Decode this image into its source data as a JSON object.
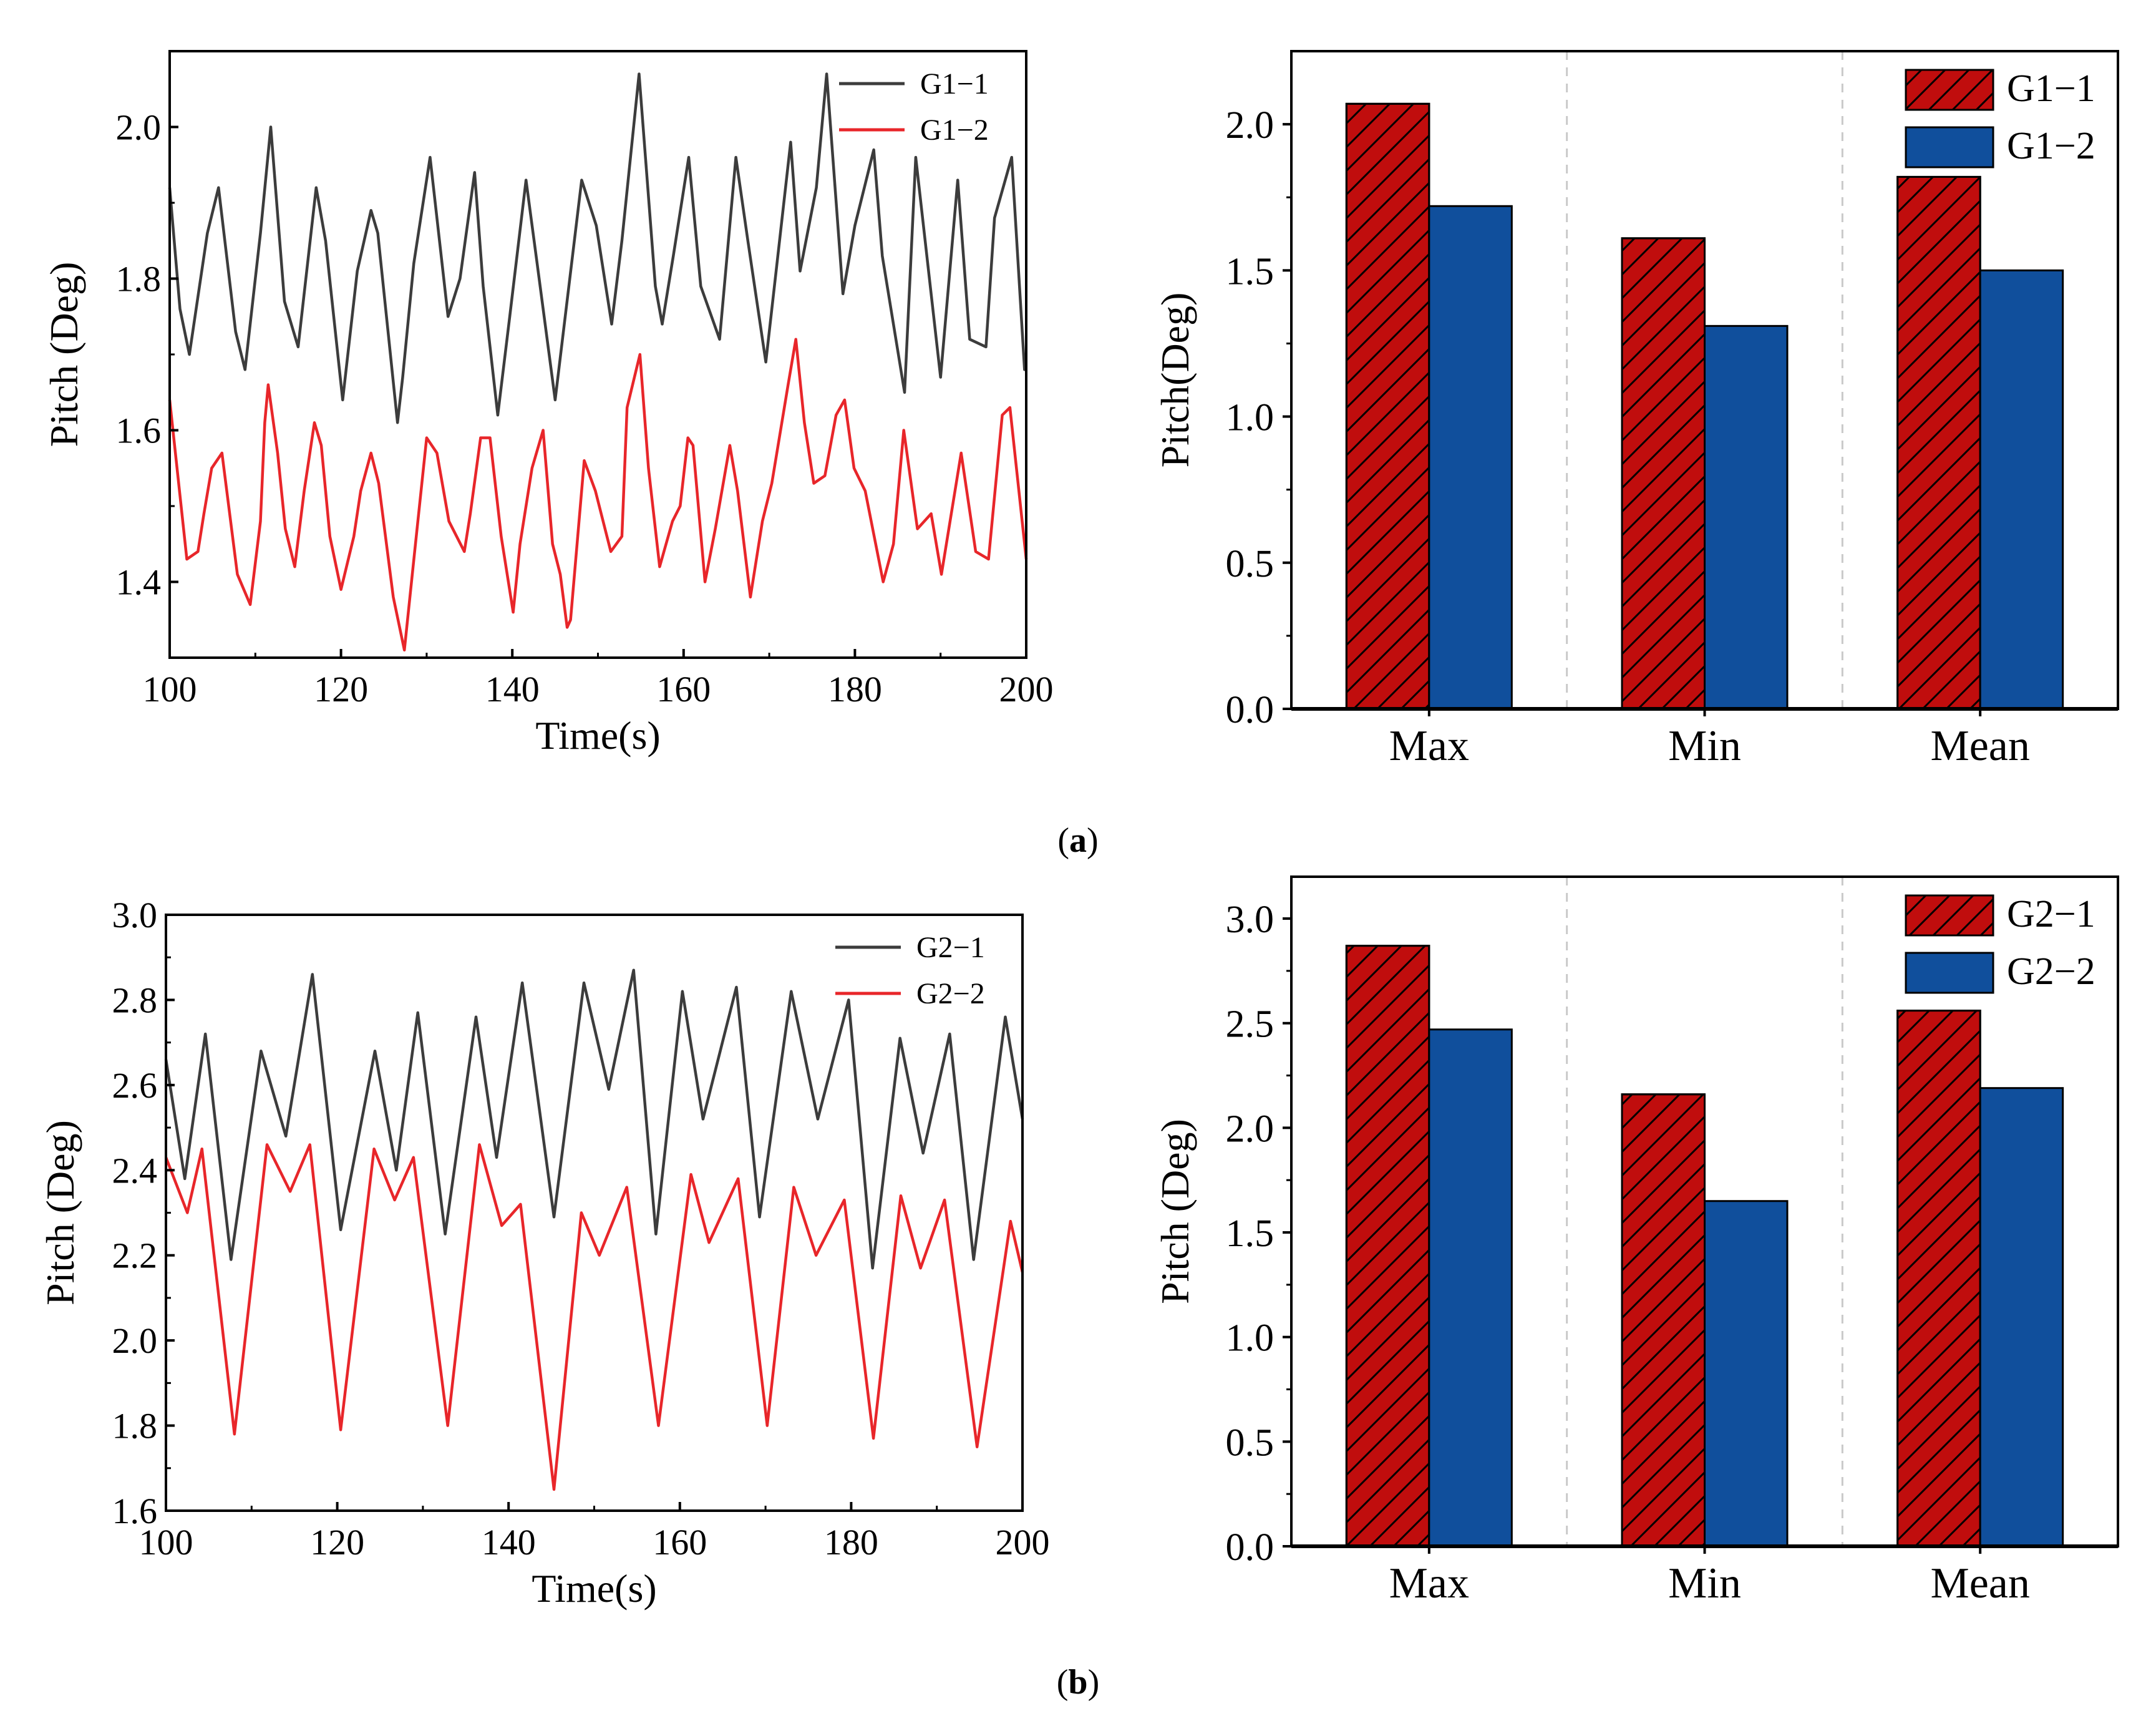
{
  "figure": {
    "panel_labels": [
      "a",
      "b"
    ],
    "colors": {
      "g1": "#3c3c3c",
      "g2": "#e8262a",
      "bar1": "#c00d0d",
      "bar2": "#104f9c",
      "separator": "#c9c9c9"
    }
  },
  "chart_data": [
    {
      "id": "a-left",
      "type": "line",
      "title": "",
      "xlabel": "Time(s)",
      "ylabel": "Pitch (Deg)",
      "xlim": [
        100,
        200
      ],
      "ylim": [
        1.3,
        2.1
      ],
      "xticks": [
        100,
        120,
        140,
        160,
        180,
        200
      ],
      "yticks": [
        1.4,
        1.6,
        1.8,
        2.0
      ],
      "ytick_labels": [
        "1.4",
        "1.6",
        "1.8",
        "2.0"
      ],
      "legend": "top-right",
      "series": [
        {
          "name": "G1−1",
          "color": "#3c3c3c",
          "x": [
            100.0,
            101.2,
            102.3,
            104.4,
            105.7,
            107.7,
            108.8,
            110.6,
            111.8,
            113.4,
            115.0,
            117.1,
            118.2,
            120.2,
            121.9,
            123.5,
            124.3,
            126.6,
            127.2,
            128.5,
            130.4,
            132.5,
            133.9,
            135.6,
            136.6,
            138.3,
            139.7,
            141.6,
            142.9,
            145.0,
            148.1,
            149.8,
            151.6,
            152.8,
            154.8,
            156.7,
            157.5,
            158.8,
            160.6,
            162.0,
            164.2,
            166.1,
            167.5,
            169.6,
            171.2,
            172.5,
            173.6,
            175.5,
            176.7,
            178.6,
            180.0,
            182.2,
            183.2,
            185.8,
            187.1,
            188.8,
            190.0,
            192.0,
            193.4,
            195.3,
            196.3,
            198.3,
            199.8,
            200.0
          ],
          "y": [
            1.92,
            1.76,
            1.7,
            1.86,
            1.92,
            1.73,
            1.68,
            1.86,
            2.0,
            1.77,
            1.71,
            1.92,
            1.85,
            1.64,
            1.81,
            1.89,
            1.86,
            1.61,
            1.67,
            1.82,
            1.96,
            1.75,
            1.8,
            1.94,
            1.79,
            1.62,
            1.75,
            1.93,
            1.82,
            1.64,
            1.93,
            1.87,
            1.74,
            1.85,
            2.07,
            1.79,
            1.74,
            1.83,
            1.96,
            1.79,
            1.72,
            1.96,
            1.85,
            1.69,
            1.85,
            1.98,
            1.81,
            1.92,
            2.07,
            1.78,
            1.87,
            1.97,
            1.83,
            1.65,
            1.96,
            1.79,
            1.67,
            1.93,
            1.72,
            1.71,
            1.88,
            1.96,
            1.68,
            1.68
          ]
        },
        {
          "name": "G1−2",
          "color": "#e8262a",
          "x": [
            100.0,
            102.0,
            103.3,
            104.0,
            104.9,
            106.1,
            107.9,
            109.4,
            110.6,
            111.1,
            111.5,
            112.6,
            113.5,
            114.6,
            115.7,
            116.9,
            117.7,
            118.7,
            120.0,
            121.5,
            122.3,
            123.5,
            124.4,
            126.1,
            127.4,
            128.6,
            130.0,
            131.2,
            132.6,
            134.4,
            135.1,
            136.3,
            137.4,
            138.7,
            140.1,
            140.9,
            142.3,
            143.6,
            144.7,
            145.6,
            146.4,
            146.8,
            148.4,
            149.7,
            151.5,
            152.8,
            153.4,
            154.9,
            155.9,
            157.2,
            158.7,
            159.6,
            160.5,
            161.1,
            162.5,
            163.7,
            165.4,
            166.3,
            167.8,
            169.2,
            170.3,
            172.2,
            173.1,
            174.1,
            175.2,
            176.5,
            177.8,
            178.8,
            179.9,
            181.2,
            183.3,
            184.5,
            185.7,
            187.3,
            188.9,
            190.1,
            192.4,
            194.1,
            195.6,
            197.2,
            198.1,
            200.0
          ],
          "y": [
            1.64,
            1.43,
            1.44,
            1.49,
            1.55,
            1.57,
            1.41,
            1.37,
            1.48,
            1.61,
            1.66,
            1.57,
            1.47,
            1.42,
            1.52,
            1.61,
            1.58,
            1.46,
            1.39,
            1.46,
            1.52,
            1.57,
            1.53,
            1.38,
            1.31,
            1.44,
            1.59,
            1.57,
            1.48,
            1.44,
            1.49,
            1.59,
            1.59,
            1.46,
            1.36,
            1.45,
            1.55,
            1.6,
            1.45,
            1.41,
            1.34,
            1.35,
            1.56,
            1.52,
            1.44,
            1.46,
            1.63,
            1.7,
            1.55,
            1.42,
            1.48,
            1.5,
            1.59,
            1.58,
            1.4,
            1.47,
            1.58,
            1.52,
            1.38,
            1.48,
            1.53,
            1.66,
            1.72,
            1.61,
            1.53,
            1.54,
            1.62,
            1.64,
            1.55,
            1.52,
            1.4,
            1.45,
            1.6,
            1.47,
            1.49,
            1.41,
            1.57,
            1.44,
            1.43,
            1.62,
            1.63,
            1.43
          ]
        }
      ]
    },
    {
      "id": "a-right",
      "type": "bar",
      "title": "",
      "xlabel": "",
      "ylabel": "Pitch(Deg)",
      "categories": [
        "Max",
        "Min",
        "Mean"
      ],
      "ylim": [
        0,
        2.25
      ],
      "yticks": [
        0.0,
        0.5,
        1.0,
        1.5,
        2.0
      ],
      "ytick_labels": [
        "0.0",
        "0.5",
        "1.0",
        "1.5",
        "2.0"
      ],
      "legend": "top-right",
      "series": [
        {
          "name": "G1−1",
          "values": [
            2.07,
            1.61,
            1.82
          ],
          "color": "#c00d0d",
          "hatch": true
        },
        {
          "name": "G1−2",
          "values": [
            1.72,
            1.31,
            1.5
          ],
          "color": "#104f9c",
          "hatch": false
        }
      ]
    },
    {
      "id": "b-left",
      "type": "line",
      "title": "",
      "xlabel": "Time(s)",
      "ylabel": "Pitch (Deg)",
      "xlim": [
        100,
        200
      ],
      "ylim": [
        1.6,
        3.0
      ],
      "xticks": [
        100,
        120,
        140,
        160,
        180,
        200
      ],
      "yticks": [
        1.6,
        1.8,
        2.0,
        2.2,
        2.4,
        2.6,
        2.8,
        3.0
      ],
      "ytick_labels": [
        "1.6",
        "1.8",
        "2.0",
        "2.2",
        "2.4",
        "2.6",
        "2.8",
        "3.0"
      ],
      "legend": "top-right",
      "series": [
        {
          "name": "G2−1",
          "color": "#3c3c3c",
          "x": [
            100.0,
            102.2,
            104.6,
            107.6,
            111.1,
            114.0,
            117.1,
            120.4,
            124.4,
            126.9,
            129.4,
            132.6,
            136.2,
            138.6,
            141.6,
            145.3,
            148.8,
            151.7,
            154.6,
            157.2,
            160.3,
            162.7,
            166.6,
            169.3,
            173.0,
            176.1,
            179.7,
            182.5,
            185.7,
            188.4,
            191.5,
            194.3,
            198.0,
            200.0
          ],
          "y": [
            2.66,
            2.38,
            2.72,
            2.19,
            2.68,
            2.48,
            2.86,
            2.26,
            2.68,
            2.4,
            2.77,
            2.25,
            2.76,
            2.43,
            2.84,
            2.29,
            2.84,
            2.59,
            2.87,
            2.25,
            2.82,
            2.52,
            2.83,
            2.29,
            2.82,
            2.52,
            2.8,
            2.17,
            2.71,
            2.44,
            2.72,
            2.19,
            2.76,
            2.52
          ]
        },
        {
          "name": "G2−2",
          "color": "#e8262a",
          "x": [
            100.0,
            102.5,
            104.2,
            108.0,
            111.8,
            114.5,
            116.8,
            120.4,
            124.3,
            126.7,
            128.9,
            132.9,
            136.6,
            139.2,
            141.4,
            145.3,
            148.5,
            150.6,
            153.8,
            157.5,
            161.3,
            163.4,
            166.8,
            170.2,
            173.3,
            175.9,
            179.2,
            182.6,
            185.8,
            188.1,
            190.9,
            194.7,
            198.6,
            200.0
          ],
          "y": [
            2.43,
            2.3,
            2.45,
            1.78,
            2.46,
            2.35,
            2.46,
            1.79,
            2.45,
            2.33,
            2.43,
            1.8,
            2.46,
            2.27,
            2.32,
            1.65,
            2.3,
            2.2,
            2.36,
            1.8,
            2.39,
            2.23,
            2.38,
            1.8,
            2.36,
            2.2,
            2.33,
            1.77,
            2.34,
            2.17,
            2.33,
            1.75,
            2.28,
            2.16
          ]
        }
      ]
    },
    {
      "id": "b-right",
      "type": "bar",
      "title": "",
      "xlabel": "",
      "ylabel": "Pitch (Deg)",
      "categories": [
        "Max",
        "Min",
        "Mean"
      ],
      "ylim": [
        0,
        3.2
      ],
      "yticks": [
        0.0,
        0.5,
        1.0,
        1.5,
        2.0,
        2.5,
        3.0
      ],
      "ytick_labels": [
        "0.0",
        "0.5",
        "1.0",
        "1.5",
        "2.0",
        "2.5",
        "3.0"
      ],
      "legend": "top-right",
      "series": [
        {
          "name": "G2−1",
          "values": [
            2.87,
            2.16,
            2.56
          ],
          "color": "#c00d0d",
          "hatch": true
        },
        {
          "name": "G2−2",
          "values": [
            2.47,
            1.65,
            2.19
          ],
          "color": "#104f9c",
          "hatch": false
        }
      ]
    }
  ]
}
